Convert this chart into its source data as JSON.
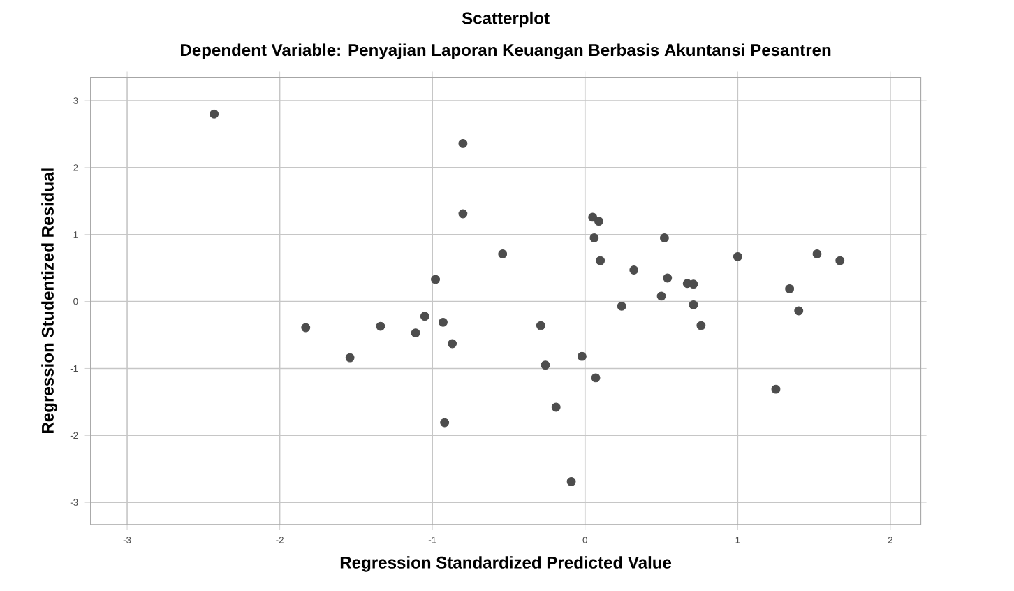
{
  "chart_data": {
    "type": "scatter",
    "title": "Scatterplot",
    "subtitle": "Dependent Variable: Penyajian Laporan Keuangan Berbasis Akuntansi Pesantren",
    "xlabel": "Regression Standardized Predicted Value",
    "ylabel": "Regression Studentized Residual",
    "x": [
      -2.43,
      -0.8,
      -0.8,
      -0.54,
      -0.98,
      -1.83,
      -1.54,
      -1.34,
      -1.05,
      -1.11,
      -0.93,
      -0.87,
      -0.92,
      0.05,
      0.09,
      0.06,
      0.1,
      0.52,
      0.32,
      0.54,
      0.67,
      0.71,
      1.0,
      1.52,
      1.67,
      1.34,
      1.4,
      0.5,
      0.71,
      0.24,
      0.76,
      -0.29,
      -0.26,
      -0.02,
      0.07,
      -0.19,
      -0.09,
      1.25
    ],
    "values": [
      2.8,
      2.36,
      1.31,
      0.71,
      0.33,
      -0.39,
      -0.84,
      -0.37,
      -0.22,
      -0.47,
      -0.31,
      -0.63,
      -1.81,
      1.26,
      1.2,
      0.95,
      0.61,
      0.95,
      0.47,
      0.35,
      0.27,
      0.26,
      0.67,
      0.71,
      0.61,
      0.19,
      -0.14,
      0.08,
      -0.05,
      -0.07,
      -0.36,
      -0.36,
      -0.95,
      -0.82,
      -1.14,
      -1.58,
      -2.69,
      -1.31
    ],
    "color": "#4d4d4d",
    "grid": true,
    "xlim": [
      -3.24,
      2.2
    ],
    "ylim": [
      -3.33,
      3.35
    ],
    "xticks": [
      -3,
      -2,
      -1,
      0,
      1,
      2
    ],
    "yticks": [
      -3,
      -2,
      -1,
      0,
      1,
      2,
      3
    ]
  }
}
